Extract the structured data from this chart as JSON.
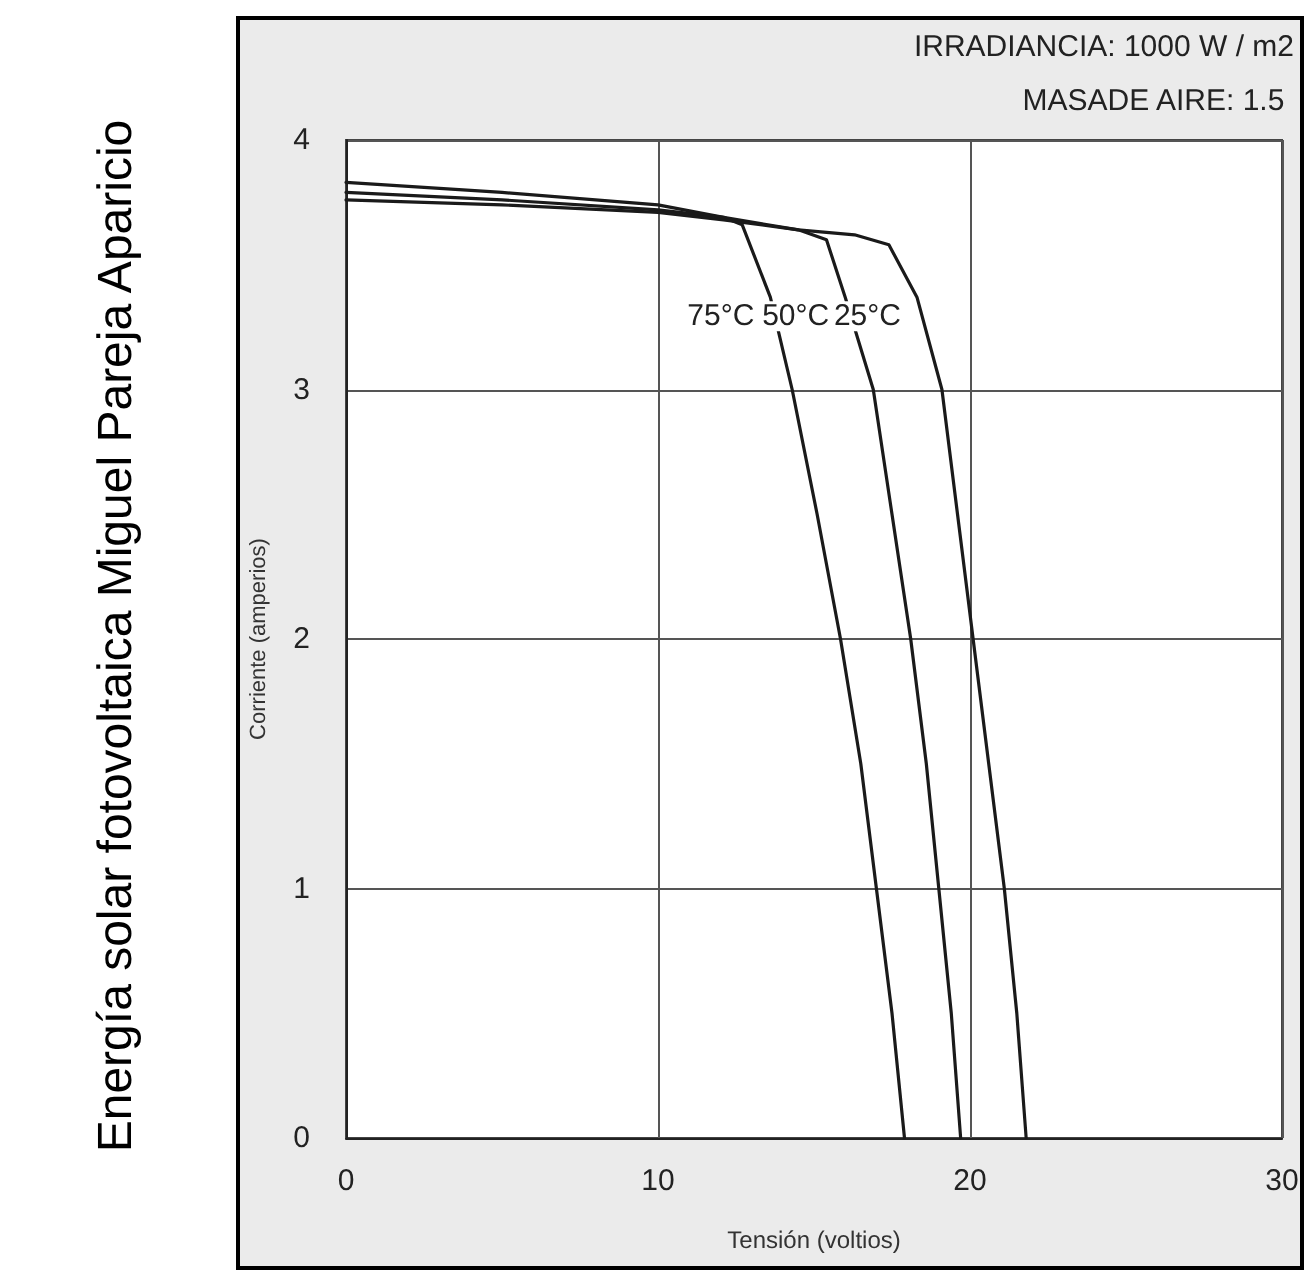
{
  "chart_data": {
    "type": "line",
    "xlabel": "Tensión (voltios)",
    "ylabel": "Corriente (amperios)",
    "annotations": [
      "IRRADIANCIA: 1000 W / m2",
      "MASADE AIRE: 1.5",
      "Energía solar fotovoltaica Miguel Pareja Aparicio"
    ],
    "xlim": [
      0,
      30
    ],
    "ylim": [
      0,
      4
    ],
    "xticks": [
      0,
      10,
      20,
      30
    ],
    "yticks": [
      0,
      1,
      2,
      3,
      4
    ],
    "grid": true,
    "legend": false,
    "marker": "none",
    "line_style": "solid",
    "series": [
      {
        "name": "75°C",
        "color": "#1a1a1a",
        "x": [
          0,
          5,
          10,
          12.1,
          12.7,
          13.6,
          14.3,
          15.1,
          15.85,
          16.5,
          17.0,
          17.5,
          17.9
        ],
        "values": [
          3.83,
          3.79,
          3.74,
          3.69,
          3.66,
          3.37,
          3.0,
          2.5,
          2.0,
          1.5,
          1.0,
          0.5,
          0
        ]
      },
      {
        "name": "50°C",
        "color": "#1a1a1a",
        "x": [
          0,
          5,
          10,
          12.1,
          14.5,
          15.4,
          16.0,
          16.9,
          17.5,
          18.1,
          18.6,
          19.0,
          19.4,
          19.7
        ],
        "values": [
          3.79,
          3.76,
          3.72,
          3.69,
          3.64,
          3.6,
          3.37,
          3.0,
          2.5,
          2.0,
          1.5,
          1.0,
          0.5,
          0
        ]
      },
      {
        "name": "25°C",
        "color": "#1a1a1a",
        "x": [
          0,
          5,
          10,
          12.1,
          14.5,
          16.3,
          17.4,
          18.3,
          19.1,
          19.6,
          20.1,
          20.6,
          21.1,
          21.5,
          21.8
        ],
        "values": [
          3.76,
          3.74,
          3.71,
          3.68,
          3.64,
          3.62,
          3.58,
          3.37,
          3.0,
          2.5,
          2.0,
          1.5,
          1.0,
          0.5,
          0
        ]
      }
    ]
  }
}
